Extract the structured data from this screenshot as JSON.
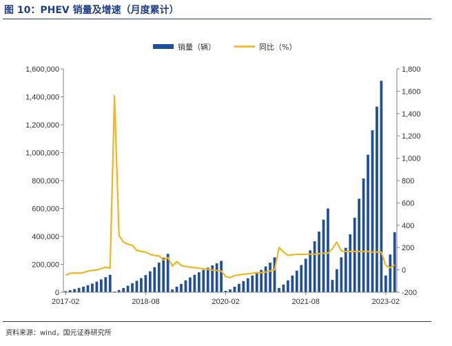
{
  "header": {
    "title": "图 10：PHEV 销量及增速（月度累计）"
  },
  "footer": {
    "source": "资料来源：wind，国元证券研究所"
  },
  "chart_data": {
    "type": "bar",
    "title": "",
    "x_tick_labels": [
      "2017-02",
      "2018-08",
      "2020-02",
      "2021-08",
      "2023-02"
    ],
    "y_left": {
      "min": 0,
      "max": 1600000,
      "ticks": [
        "0",
        "200,000",
        "400,000",
        "600,000",
        "800,000",
        "1,000,000",
        "1,200,000",
        "1,400,000",
        "1,600,000"
      ]
    },
    "y_right": {
      "min": -200,
      "max": 1800,
      "ticks": [
        "-200",
        "0",
        "200",
        "400",
        "600",
        "800",
        "1,000",
        "1,200",
        "1,400",
        "1,600",
        "1,800"
      ]
    },
    "legend": {
      "position": "top-center"
    },
    "colors": {
      "bar": "#1f4e9c",
      "line": "#f2b41c",
      "axis": "#808080"
    },
    "series": [
      {
        "name": "销量（辆）",
        "type": "bar",
        "axis": "left",
        "values": [
          8000,
          15000,
          23000,
          31000,
          40000,
          50000,
          62000,
          76000,
          92000,
          108000,
          125000,
          5000,
          16000,
          30000,
          47000,
          64000,
          82000,
          101000,
          123000,
          150000,
          180000,
          212000,
          248000,
          275000,
          20000,
          40000,
          60000,
          85000,
          106000,
          125000,
          143000,
          160000,
          176000,
          192000,
          207000,
          225000,
          10000,
          20000,
          40000,
          60000,
          80000,
          100000,
          120000,
          140000,
          160000,
          185000,
          212000,
          250000,
          30000,
          55000,
          85000,
          120000,
          155000,
          195000,
          240000,
          300000,
          365000,
          435000,
          520000,
          600000,
          88000,
          165000,
          250000,
          318000,
          415000,
          534000,
          670000,
          815000,
          985000,
          1160000,
          1330000,
          1515000,
          120000,
          270000,
          430000
        ]
      },
      {
        "name": "同比（%）",
        "type": "line",
        "axis": "right",
        "values": [
          -50,
          -30,
          -28,
          -30,
          -25,
          -10,
          -5,
          0,
          10,
          25,
          15,
          1560,
          310,
          250,
          230,
          220,
          175,
          165,
          160,
          140,
          130,
          125,
          90,
          110,
          35,
          75,
          40,
          30,
          25,
          20,
          15,
          10,
          5,
          0,
          -5,
          -10,
          -60,
          -70,
          -50,
          -45,
          -40,
          -35,
          -30,
          -25,
          -25,
          -20,
          -10,
          0,
          200,
          160,
          130,
          135,
          140,
          140,
          140,
          140,
          140,
          145,
          150,
          150,
          190,
          250,
          170,
          165,
          165,
          165,
          165,
          165,
          165,
          160,
          160,
          160,
          40,
          20,
          45
        ]
      }
    ]
  }
}
